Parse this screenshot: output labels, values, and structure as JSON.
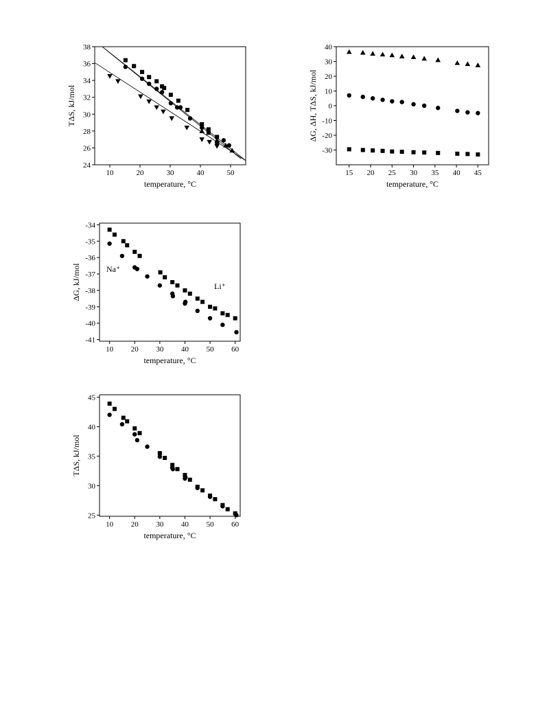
{
  "chart_data": [
    {
      "type": "scatter",
      "xlabel": "temperature, °C",
      "ylabel": "TΔS, kJ/mol",
      "xlim": [
        5,
        55
      ],
      "ylim": [
        24,
        38
      ],
      "xticks": [
        10,
        20,
        30,
        40,
        50
      ],
      "yticks": [
        24,
        26,
        28,
        30,
        32,
        34,
        36,
        38
      ],
      "series": [
        {
          "marker": "square",
          "color": "#000000",
          "x": [
            15.2,
            18,
            20.7,
            23,
            25.5,
            27.3,
            28,
            30.2,
            32.7,
            35.7,
            40.5,
            42.7,
            45.5
          ],
          "values": [
            36.4,
            35.7,
            35.0,
            34.4,
            33.9,
            33.3,
            33.1,
            32.3,
            31.6,
            30.5,
            28.8,
            28.2,
            27.3
          ]
        },
        {
          "marker": "circle",
          "color": "#000000",
          "x": [
            15.2,
            20.7,
            23,
            25.5,
            27.3,
            30.2,
            32.3,
            33.4,
            36.6,
            40.5,
            42.7,
            45.5,
            47.7,
            49.5
          ],
          "values": [
            35.6,
            34.2,
            33.6,
            33.0,
            32.6,
            31.3,
            30.8,
            30.8,
            29.5,
            28.4,
            27.9,
            26.6,
            26.9,
            26.3
          ]
        },
        {
          "marker": "triangle-up",
          "color": "#000000",
          "x": [
            40.5,
            42.7,
            45.5,
            48.4,
            50.5
          ],
          "values": [
            28.0,
            27.8,
            26.9,
            26.3,
            25.7
          ]
        },
        {
          "marker": "triangle-down",
          "color": "#000000",
          "x": [
            10,
            12.7,
            20.2,
            23,
            25.5,
            27.7,
            30.5,
            35.5,
            40.5,
            43,
            45.5
          ],
          "values": [
            34.5,
            33.9,
            32.1,
            31.5,
            30.8,
            30.3,
            29.5,
            28.4,
            27.0,
            26.7,
            26.2
          ]
        }
      ],
      "lines": [
        {
          "color": "#000000",
          "x": [
            5,
            55
          ],
          "values": [
            36.1,
            24.5
          ]
        },
        {
          "color": "#000000",
          "x": [
            7.5,
            55
          ],
          "values": [
            38,
            24.5
          ]
        },
        {
          "color": "#000000",
          "x": [
            8.5,
            53.5
          ],
          "values": [
            37.7,
            24.7
          ]
        }
      ]
    },
    {
      "type": "scatter",
      "xlabel": "temperature, °C",
      "ylabel": "ΔG, ΔH, TΔS,  kJ/mol",
      "xlim": [
        12,
        47.5
      ],
      "ylim": [
        -40,
        40
      ],
      "xticks": [
        15,
        20,
        25,
        30,
        35,
        40,
        45
      ],
      "yticks": [
        -30,
        -20,
        -10,
        0,
        10,
        20,
        30,
        40
      ],
      "series": [
        {
          "marker": "triangle-up",
          "color": "#000000",
          "x": [
            15,
            18.2,
            20.5,
            22.8,
            25,
            27.3,
            30,
            32.5,
            35.7,
            40.2,
            42.6,
            45
          ],
          "values": [
            36.5,
            36,
            35.3,
            34.8,
            34.3,
            33.5,
            33,
            32,
            31,
            29,
            28.3,
            27.5
          ]
        },
        {
          "marker": "circle",
          "color": "#000000",
          "x": [
            15,
            18.2,
            20.5,
            22.8,
            25,
            27.3,
            30,
            32.5,
            35.7,
            40.2,
            42.6,
            45
          ],
          "values": [
            7,
            6,
            5,
            4,
            3,
            2.5,
            1,
            0,
            -1.5,
            -3.5,
            -4.5,
            -5
          ]
        },
        {
          "marker": "square",
          "color": "#000000",
          "x": [
            15,
            18.2,
            20.5,
            22.8,
            25,
            27.3,
            30,
            32.5,
            35.7,
            40.2,
            42.6,
            45
          ],
          "values": [
            -29.5,
            -30,
            -30.3,
            -30.6,
            -31,
            -31.2,
            -31.5,
            -31.7,
            -32,
            -32.5,
            -32.7,
            -33
          ]
        }
      ]
    },
    {
      "type": "scatter",
      "xlabel": "temperature, °C",
      "ylabel": "ΔG, kJ/mol",
      "xlim": [
        6,
        62
      ],
      "ylim": [
        -41.1,
        -33.9
      ],
      "xticks": [
        10,
        20,
        30,
        40,
        50,
        60
      ],
      "yticks": [
        -41,
        -40,
        -39,
        -38,
        -37,
        -36,
        -35,
        -34
      ],
      "annotations": [
        "Na⁺",
        "Li⁺"
      ],
      "series": [
        {
          "marker": "square",
          "color": "#000000",
          "x": [
            10,
            12,
            15.5,
            17,
            20,
            22,
            30.2,
            32,
            35,
            37,
            40,
            42,
            45,
            47,
            50,
            52,
            55,
            57,
            60
          ],
          "values": [
            -34.3,
            -34.6,
            -35.0,
            -35.25,
            -35.65,
            -35.9,
            -36.9,
            -37.2,
            -37.5,
            -37.7,
            -38.0,
            -38.2,
            -38.5,
            -38.7,
            -39.0,
            -39.1,
            -39.4,
            -39.5,
            -39.7
          ]
        },
        {
          "marker": "circle",
          "color": "#000000",
          "x": [
            10,
            15,
            20,
            21,
            25,
            30,
            35,
            35.2,
            40,
            40.2,
            45,
            50,
            55,
            60.5
          ],
          "values": [
            -35.15,
            -35.9,
            -36.6,
            -36.7,
            -37.15,
            -37.7,
            -38.2,
            -38.35,
            -38.8,
            -38.7,
            -39.25,
            -39.7,
            -40.1,
            -40.55
          ]
        }
      ]
    },
    {
      "type": "scatter",
      "xlabel": "temperature, °C",
      "ylabel": "TΔS, kJ/mol",
      "xlim": [
        6,
        62
      ],
      "ylim": [
        24.8,
        45.4
      ],
      "xticks": [
        10,
        20,
        30,
        40,
        50,
        60
      ],
      "yticks": [
        25,
        30,
        35,
        40,
        45
      ],
      "series": [
        {
          "marker": "square",
          "color": "#000000",
          "x": [
            10,
            12,
            15.5,
            17,
            20,
            22,
            30,
            32,
            35,
            37,
            40,
            42,
            45,
            47,
            50,
            52,
            55,
            57,
            60
          ],
          "values": [
            43.9,
            43.0,
            41.5,
            40.9,
            39.7,
            38.9,
            35.5,
            34.7,
            33.5,
            32.8,
            31.8,
            31.0,
            29.8,
            29.2,
            28.3,
            27.7,
            26.7,
            26.0,
            25.3
          ]
        },
        {
          "marker": "circle",
          "color": "#000000",
          "x": [
            10,
            15,
            20,
            21,
            25,
            30,
            35,
            35.2,
            40,
            40.2,
            45,
            50,
            55,
            60.5
          ],
          "values": [
            42.0,
            40.4,
            38.7,
            37.7,
            36.6,
            34.9,
            33.0,
            32.8,
            31.2,
            31.4,
            29.6,
            28.1,
            26.5,
            25.0
          ]
        }
      ]
    }
  ]
}
